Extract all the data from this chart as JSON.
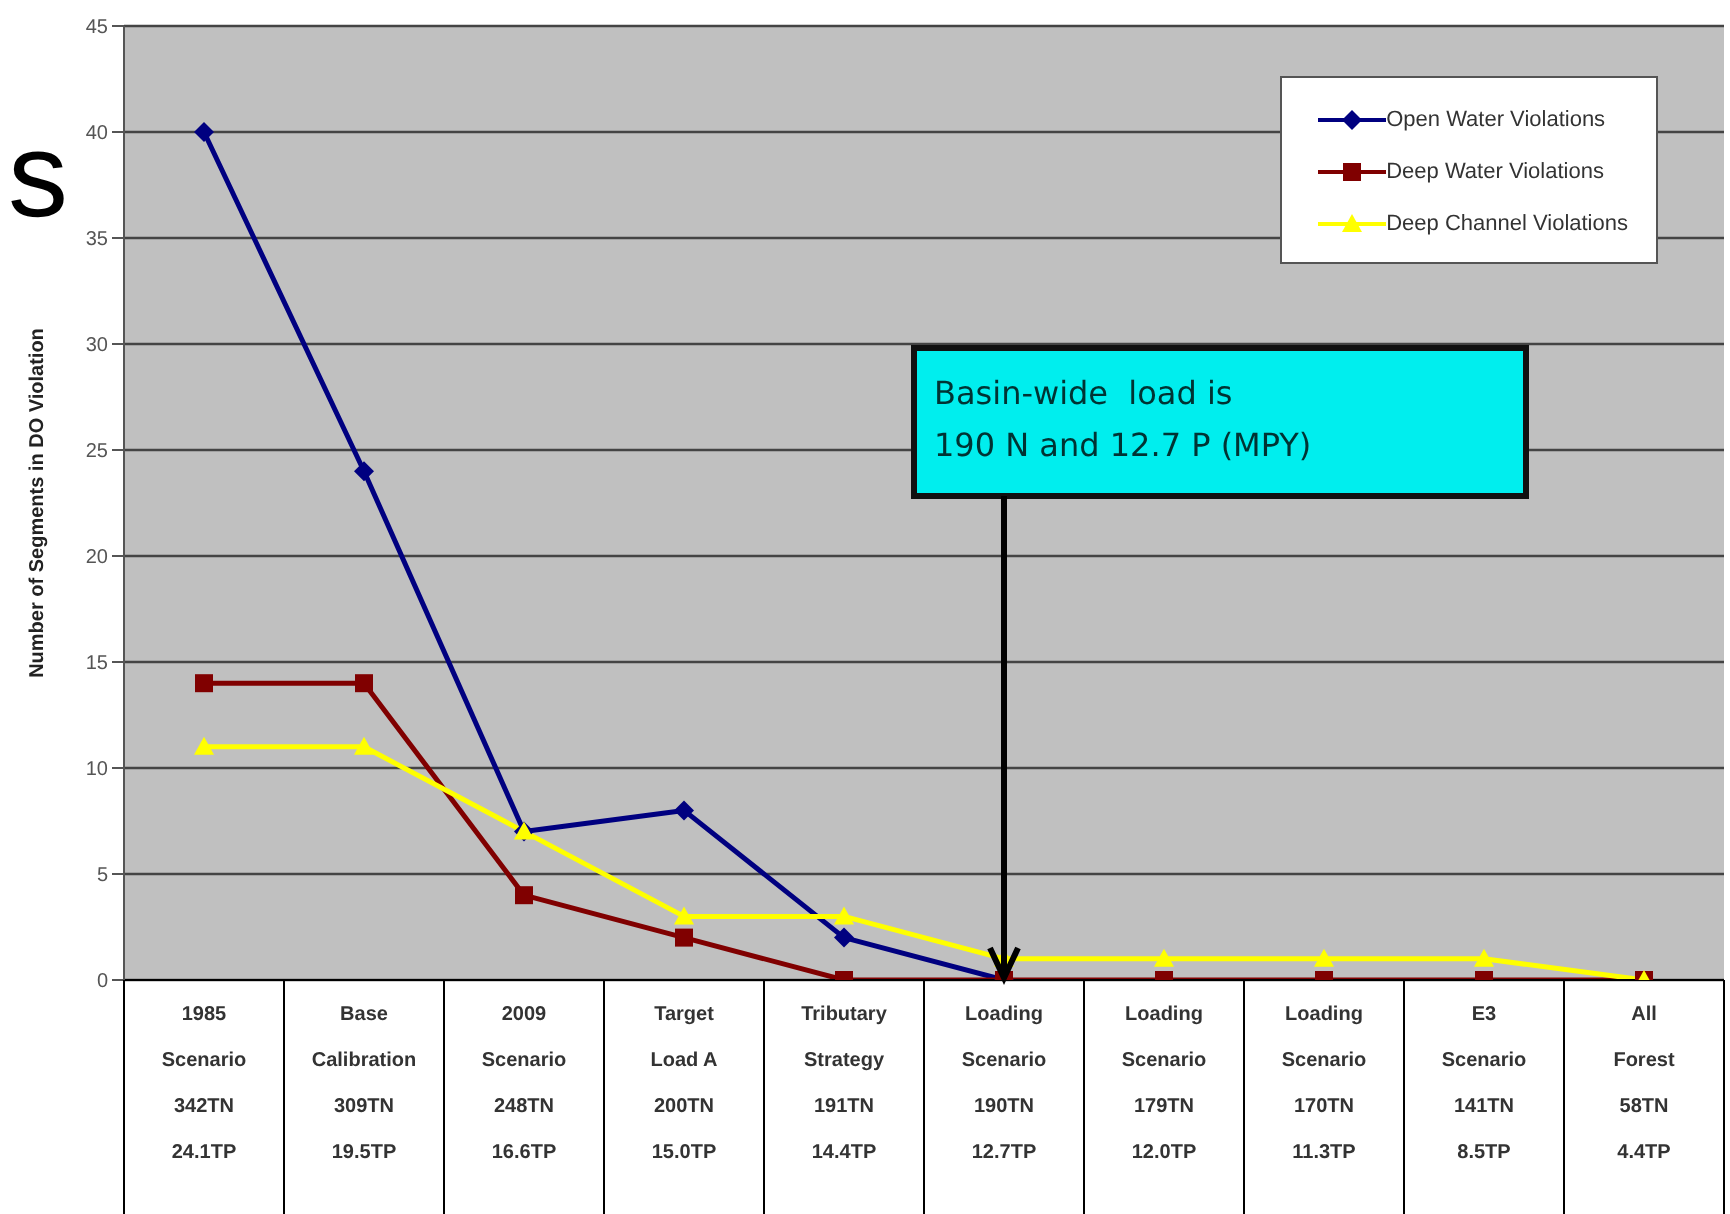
{
  "chart_data": {
    "type": "line",
    "ylabel": "Number of Segments in DO Violation",
    "categories": [
      "1985\nScenario\n342TN\n24.1TP",
      "Base\nCalibration\n309TN\n19.5TP",
      "2009\nScenario\n248TN\n16.6TP",
      "Target\nLoad A\n200TN\n15.0TP",
      "Tributary\nStrategy\n191TN\n14.4TP",
      "Loading\nScenario\n190TN\n12.7TP",
      "Loading\nScenario\n179TN\n12.0TP",
      "Loading\nScenario\n170TN\n11.3TP",
      "E3\nScenario\n141TN\n8.5TP",
      "All\nForest\n58TN\n4.4TP"
    ],
    "series": [
      {
        "name": "Open Water Violations",
        "color": "#000080",
        "marker": "diamond",
        "values": [
          40,
          24,
          7,
          8,
          2,
          0,
          null,
          null,
          null,
          null
        ]
      },
      {
        "name": "Deep Water Violations",
        "color": "#800000",
        "marker": "square",
        "values": [
          14,
          14,
          4,
          2,
          0,
          0,
          0,
          0,
          0,
          0
        ]
      },
      {
        "name": "Deep Channel Violations",
        "color": "#ffff00",
        "marker": "triangle",
        "values": [
          11,
          11,
          7,
          3,
          3,
          1,
          1,
          1,
          1,
          0
        ]
      }
    ],
    "ylim": [
      0,
      45
    ],
    "yticks": [
      0,
      5,
      10,
      15,
      20,
      25,
      30,
      35,
      40,
      45
    ],
    "grid": "y",
    "legend": "top right",
    "line_style": "solid",
    "annotations": [
      "s",
      {
        "text": "Basin-wide  load is\n190 N and 12.7 P (MPY)",
        "x": "Loading\nScenario\n190TN\n12.7TP",
        "y": 0
      }
    ]
  }
}
